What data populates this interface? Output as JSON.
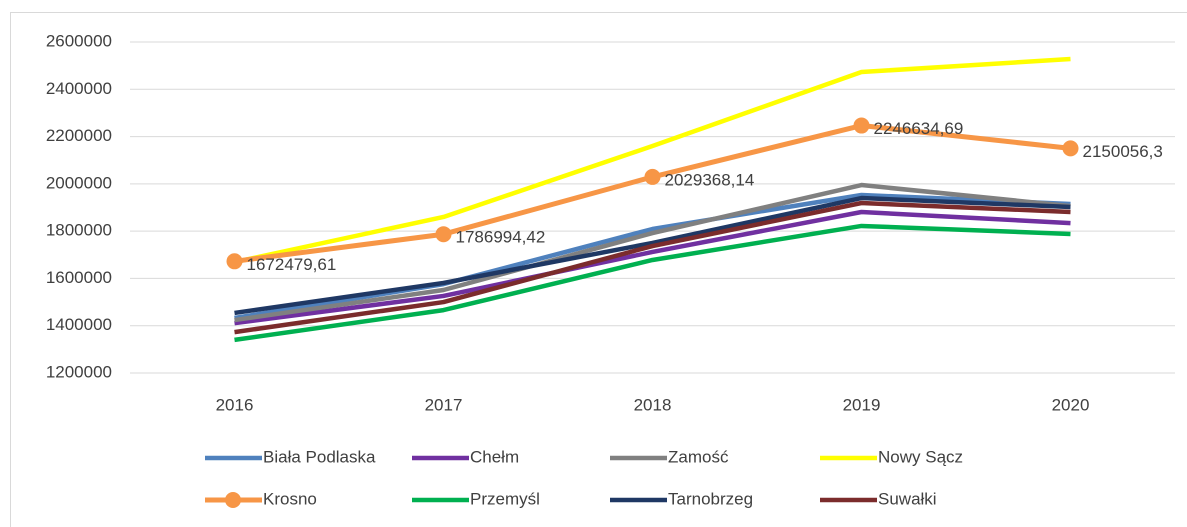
{
  "chart_data": {
    "type": "line",
    "categories": [
      "2016",
      "2017",
      "2018",
      "2019",
      "2020"
    ],
    "ylim": [
      1200000,
      2600000
    ],
    "yticks": [
      1200000,
      1400000,
      1600000,
      1800000,
      2000000,
      2200000,
      2400000,
      2600000
    ],
    "grid": true,
    "legend": "bottom",
    "series": [
      {
        "name": "Biała Podlaska",
        "color": "#4f81bd",
        "values": [
          1433000,
          1576000,
          1809000,
          1953000,
          1915000
        ]
      },
      {
        "name": "Chełm",
        "color": "#7030a0",
        "values": [
          1411000,
          1526000,
          1712000,
          1881000,
          1834000
        ]
      },
      {
        "name": "Zamość",
        "color": "#808080",
        "values": [
          1424000,
          1551000,
          1792000,
          1995000,
          1906000
        ]
      },
      {
        "name": "Nowy Sącz",
        "color": "#ffff00",
        "values": [
          1669000,
          1860000,
          2160000,
          2473000,
          2528000
        ]
      },
      {
        "name": "Krosno",
        "color": "#f79646",
        "marker": "circle",
        "values": [
          1672479.61,
          1786994.42,
          2029368.14,
          2246634.69,
          2150056.3
        ],
        "value_labels": [
          "1672479,61",
          "1786994,42",
          "2029368,14",
          "2246634,69",
          "2150056,3"
        ]
      },
      {
        "name": "Przemyśl",
        "color": "#00b050",
        "values": [
          1340000,
          1466000,
          1678000,
          1822000,
          1788000
        ]
      },
      {
        "name": "Tarnobrzeg",
        "color": "#1f3864",
        "values": [
          1454000,
          1581000,
          1750000,
          1940000,
          1902000
        ]
      },
      {
        "name": "Suwałki",
        "color": "#7b2c2c",
        "values": [
          1373000,
          1500000,
          1737000,
          1919000,
          1881000
        ]
      }
    ]
  }
}
